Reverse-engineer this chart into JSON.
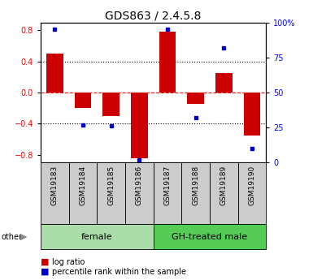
{
  "title": "GDS863 / 2.4.5.8",
  "samples": [
    "GSM19183",
    "GSM19184",
    "GSM19185",
    "GSM19186",
    "GSM19187",
    "GSM19188",
    "GSM19189",
    "GSM19190"
  ],
  "log_ratio": [
    0.5,
    -0.2,
    -0.3,
    -0.85,
    0.78,
    -0.15,
    0.25,
    -0.55
  ],
  "percentile_rank": [
    95,
    27,
    26,
    2,
    95,
    32,
    82,
    10
  ],
  "groups": [
    {
      "label": "female",
      "start": 0,
      "end": 4,
      "color": "#aaddaa"
    },
    {
      "label": "GH-treated male",
      "start": 4,
      "end": 8,
      "color": "#55cc55"
    }
  ],
  "bar_color": "#CC0000",
  "dot_color": "#0000CC",
  "ylim": [
    -0.9,
    0.9
  ],
  "y2lim": [
    0,
    100
  ],
  "yticks": [
    -0.8,
    -0.4,
    0.0,
    0.4,
    0.8
  ],
  "y2ticks": [
    0,
    25,
    50,
    75,
    100
  ],
  "y2ticklabels": [
    "0",
    "25",
    "50",
    "75",
    "100%"
  ],
  "hlines_dotted": [
    -0.4,
    0.4
  ],
  "hline_red_dashed": 0.0,
  "legend_items": [
    "log ratio",
    "percentile rank within the sample"
  ],
  "other_label": "other",
  "title_fontsize": 10,
  "tick_fontsize": 7,
  "legend_fontsize": 7,
  "group_fontsize": 8,
  "sample_fontsize": 6.5,
  "bar_width": 0.6
}
